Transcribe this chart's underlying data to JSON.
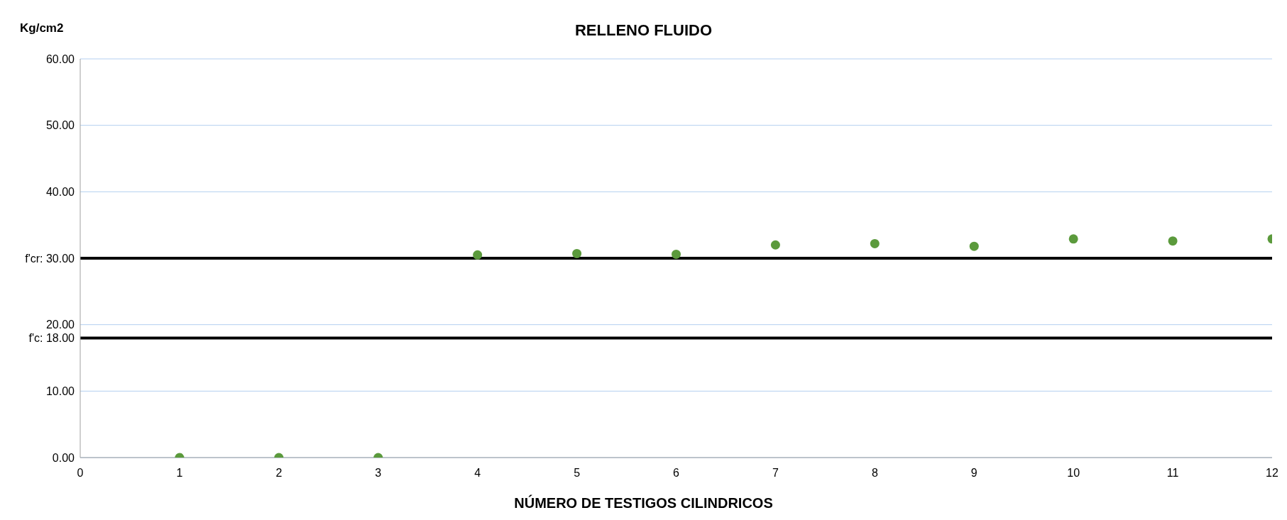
{
  "chart_data": {
    "type": "scatter",
    "title": "RELLENO FLUIDO",
    "ylabel": "Kg/cm2",
    "xlabel": "NÚMERO DE TESTIGOS CILINDRICOS",
    "x": [
      1,
      2,
      3,
      4,
      5,
      6,
      7,
      8,
      9,
      10,
      11,
      12
    ],
    "series": [
      {
        "color": "#5b9a3c",
        "values": [
          0,
          0,
          0,
          30.5,
          30.7,
          30.6,
          32.0,
          32.2,
          31.8,
          32.9,
          32.6,
          32.9
        ]
      }
    ],
    "xlim": [
      0,
      12
    ],
    "xticks": [
      0,
      1,
      2,
      3,
      4,
      5,
      6,
      7,
      8,
      9,
      10,
      11,
      12
    ],
    "ylim": [
      0,
      60
    ],
    "yticks": [
      {
        "value": 0,
        "label": "0.00"
      },
      {
        "value": 10,
        "label": "10.00"
      },
      {
        "value": 20,
        "label": "20.00"
      },
      {
        "value": 30,
        "label": null
      },
      {
        "value": 40,
        "label": "40.00"
      },
      {
        "value": 50,
        "label": "50.00"
      },
      {
        "value": 60,
        "label": "60.00"
      }
    ],
    "ref_lines": [
      {
        "axis": "y",
        "value": 30,
        "label": "f'cr: 30.00",
        "color": "#000000"
      },
      {
        "axis": "y",
        "value": 18,
        "label": "f'c: 18.00",
        "color": "#000000"
      }
    ],
    "grid": "y",
    "marker": "circle"
  }
}
